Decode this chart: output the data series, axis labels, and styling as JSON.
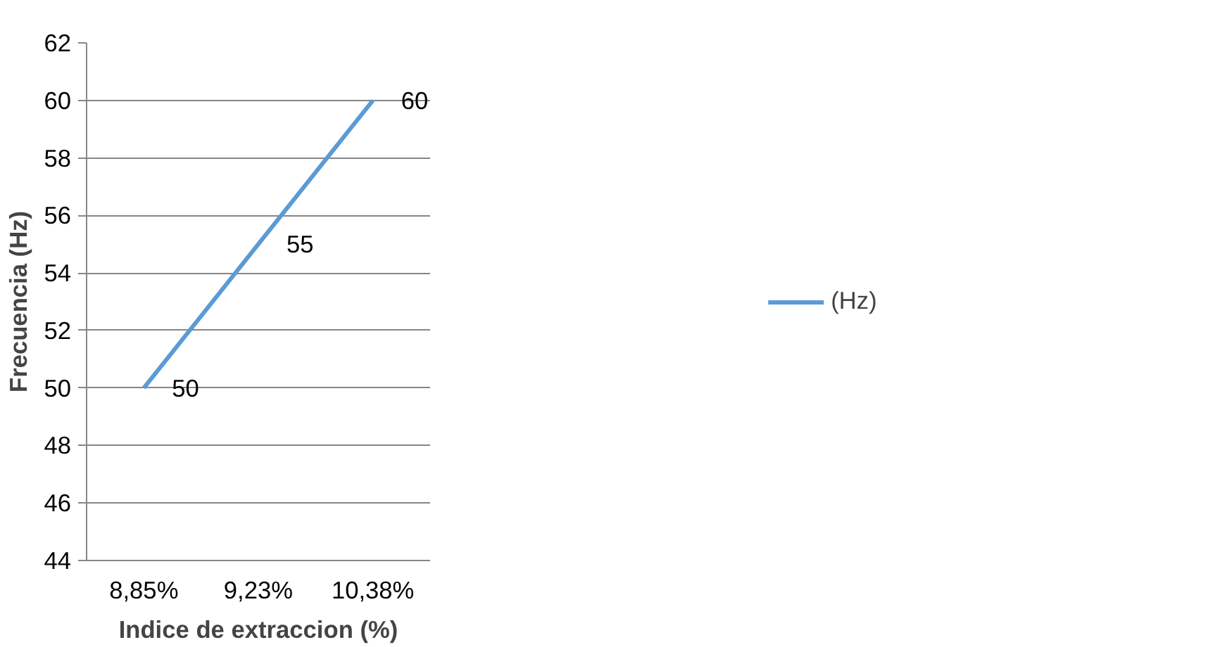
{
  "chart_data": {
    "type": "line",
    "xlabel": "Indice de extraccion (%)",
    "ylabel": "Frecuencia (Hz)",
    "categories": [
      "8,85%",
      "9,23%",
      "10,38%"
    ],
    "series": [
      {
        "name": "(Hz)",
        "color": "#5b9bd5",
        "values": [
          50,
          55,
          60
        ]
      }
    ],
    "ylim": [
      44,
      62
    ],
    "yticks": [
      44,
      46,
      48,
      50,
      52,
      54,
      56,
      58,
      60,
      62
    ],
    "grid": "y",
    "legend": "right",
    "data_labels": true,
    "marker": "none"
  }
}
